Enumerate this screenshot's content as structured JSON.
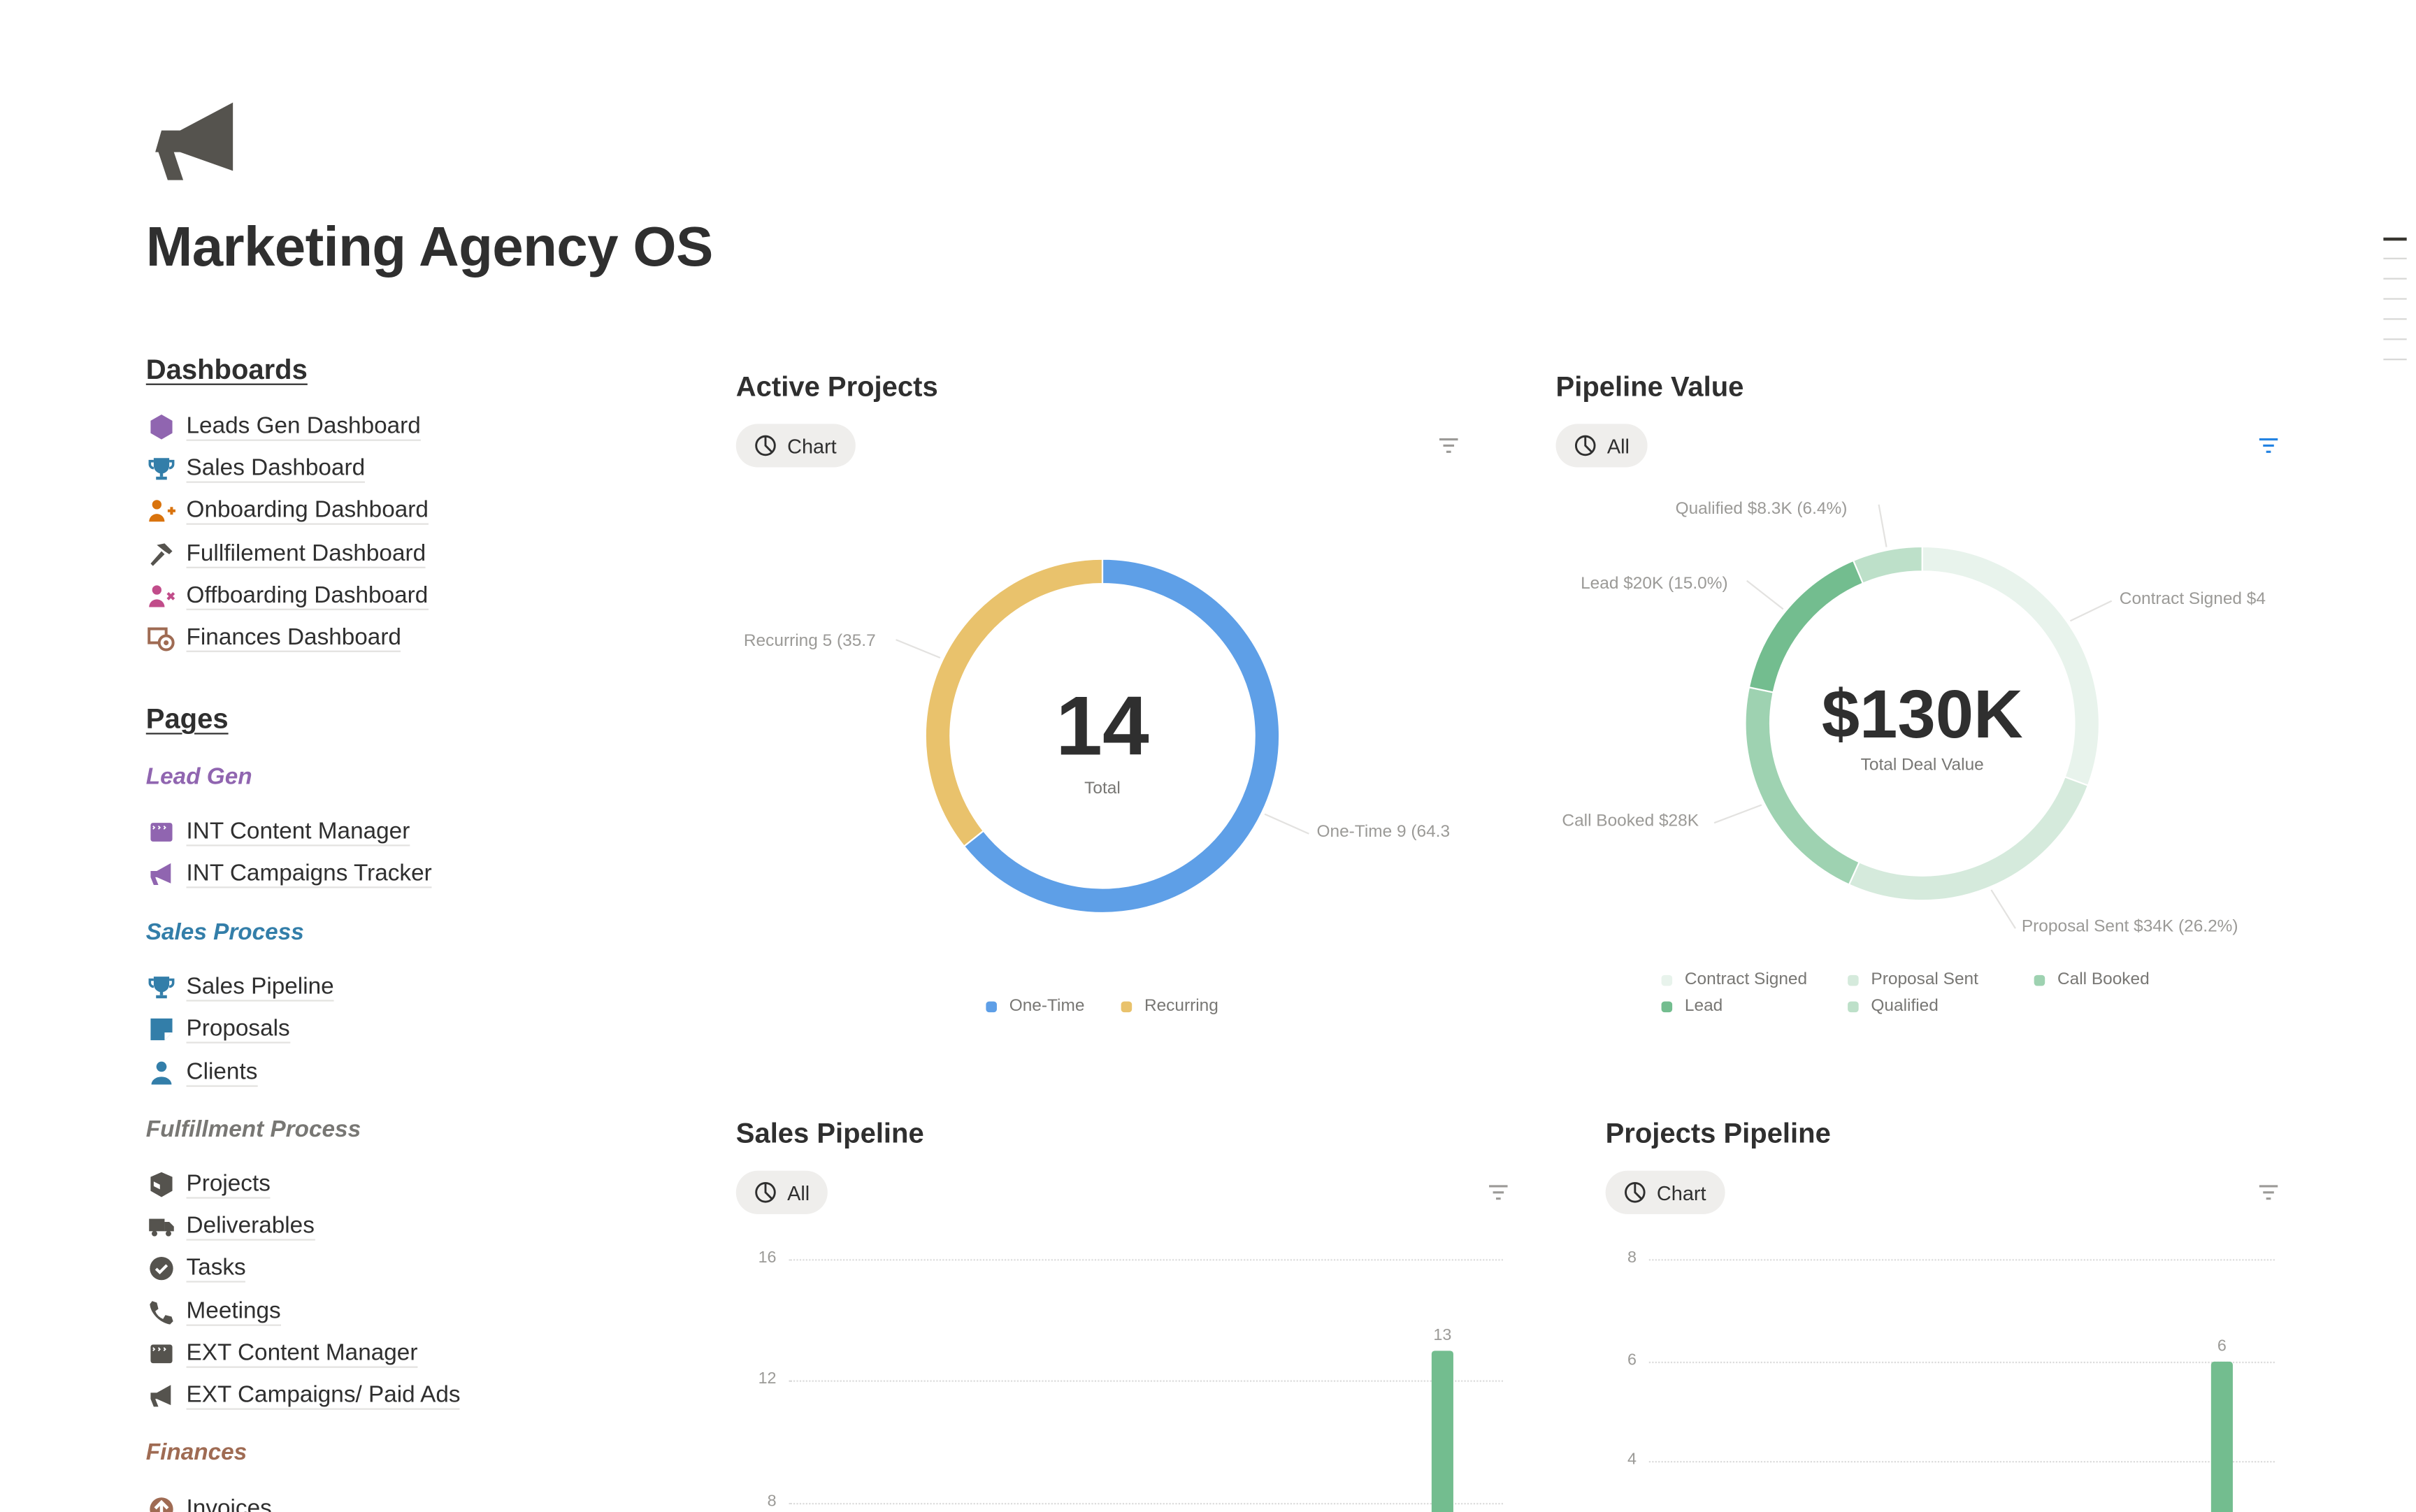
{
  "page": {
    "title": "Marketing Agency OS",
    "icon": "megaphone-icon"
  },
  "sidebar": {
    "dashboards_heading": "Dashboards",
    "dashboards": [
      {
        "label": "Leads Gen Dashboard",
        "icon": "hexagon-icon",
        "color": "#9065b0"
      },
      {
        "label": "Sales Dashboard",
        "icon": "trophy-icon",
        "color": "#337ea9"
      },
      {
        "label": "Onboarding Dashboard",
        "icon": "user-plus-icon",
        "color": "#d9730d"
      },
      {
        "label": "Fullfilement Dashboard",
        "icon": "hammer-icon",
        "color": "#55534e"
      },
      {
        "label": "Offboarding Dashboard",
        "icon": "user-x-icon",
        "color": "#c14c8a"
      },
      {
        "label": "Finances Dashboard",
        "icon": "money-icon",
        "color": "#9f6b53"
      }
    ],
    "pages_heading": "Pages",
    "sections": [
      {
        "title": "Lead Gen",
        "color": "#9065b0",
        "items": [
          {
            "label": "INT Content Manager",
            "icon": "clapperboard-icon",
            "color": "#9065b0"
          },
          {
            "label": "INT Campaigns Tracker",
            "icon": "megaphone-icon",
            "color": "#9065b0"
          }
        ]
      },
      {
        "title": "Sales Process",
        "color": "#337ea9",
        "items": [
          {
            "label": "Sales Pipeline",
            "icon": "trophy-icon",
            "color": "#337ea9"
          },
          {
            "label": "Proposals",
            "icon": "note-icon",
            "color": "#337ea9"
          },
          {
            "label": "Clients",
            "icon": "user-icon",
            "color": "#337ea9"
          }
        ]
      },
      {
        "title": "Fulfillment Process",
        "color": "#787774",
        "items": [
          {
            "label": "Projects",
            "icon": "box-icon",
            "color": "#55534e"
          },
          {
            "label": "Deliverables",
            "icon": "truck-icon",
            "color": "#55534e"
          },
          {
            "label": "Tasks",
            "icon": "check-circle-icon",
            "color": "#55534e"
          },
          {
            "label": "Meetings",
            "icon": "phone-icon",
            "color": "#55534e"
          },
          {
            "label": "EXT Content Manager",
            "icon": "clapperboard-icon",
            "color": "#55534e"
          },
          {
            "label": "EXT Campaigns/ Paid Ads",
            "icon": "megaphone-icon",
            "color": "#55534e"
          }
        ]
      },
      {
        "title": "Finances",
        "color": "#9f6b53",
        "items": [
          {
            "label": "Invoices",
            "icon": "arrow-up-circle-icon",
            "color": "#9f6b53"
          }
        ]
      }
    ]
  },
  "panels": {
    "active_projects": {
      "title": "Active Projects",
      "view_label": "Chart",
      "view_icon": "pie-chart-icon",
      "filter_icon": "filter-icon"
    },
    "pipeline_value": {
      "title": "Pipeline Value",
      "view_label": "All",
      "view_icon": "pie-chart-icon",
      "filter_icon": "filter-icon",
      "filter_color": "#2383e2"
    },
    "sales_pipeline": {
      "title": "Sales Pipeline",
      "view_label": "All",
      "view_icon": "pie-chart-icon",
      "filter_icon": "filter-icon"
    },
    "projects_pipeline": {
      "title": "Projects Pipeline",
      "view_label": "Chart",
      "view_icon": "pie-chart-icon",
      "filter_icon": "filter-icon"
    }
  },
  "chart_data": [
    {
      "type": "pie",
      "variant": "donut",
      "center_value": "14",
      "center_label": "Total",
      "legend_position": "bottom",
      "slices": [
        {
          "name": "One-Time",
          "value": 9,
          "percent": 64.3,
          "color": "#5e9fe7",
          "label": "One-Time  9 (64.3"
        },
        {
          "name": "Recurring",
          "value": 5,
          "percent": 35.7,
          "color": "#e9c26c",
          "label": "Recurring  5 (35.7"
        }
      ]
    },
    {
      "type": "pie",
      "variant": "donut",
      "center_value": "$130K",
      "center_label": "Total Deal Value",
      "legend_position": "bottom",
      "slices": [
        {
          "name": "Contract Signed",
          "value": 40,
          "percent": 30.9,
          "color": "#e8f3ec",
          "label": "Contract Signed  $4"
        },
        {
          "name": "Proposal Sent",
          "value": 34,
          "percent": 26.2,
          "color": "#d5eadc",
          "label": "Proposal Sent  $34K (26.2%)"
        },
        {
          "name": "Call Booked",
          "value": 28,
          "percent": 21.5,
          "color": "#9ed2b1",
          "label": "Call Booked  $28K"
        },
        {
          "name": "Lead",
          "value": 20,
          "percent": 15.0,
          "color": "#73bd8f",
          "label": "Lead  $20K (15.0%)"
        },
        {
          "name": "Qualified",
          "value": 8.3,
          "percent": 6.4,
          "color": "#bde0c9",
          "label": "Qualified  $8.3K (6.4%)"
        }
      ]
    },
    {
      "type": "bar",
      "yticks": [
        "16",
        "12",
        "8"
      ],
      "grid": true,
      "bar_color": "#73bd8f",
      "values": [
        13
      ],
      "data_labels": [
        "13"
      ]
    },
    {
      "type": "bar",
      "yticks": [
        "8",
        "6",
        "4"
      ],
      "grid": true,
      "bar_color": "#73bd8f",
      "values": [
        6
      ],
      "data_labels": [
        "6"
      ]
    }
  ]
}
